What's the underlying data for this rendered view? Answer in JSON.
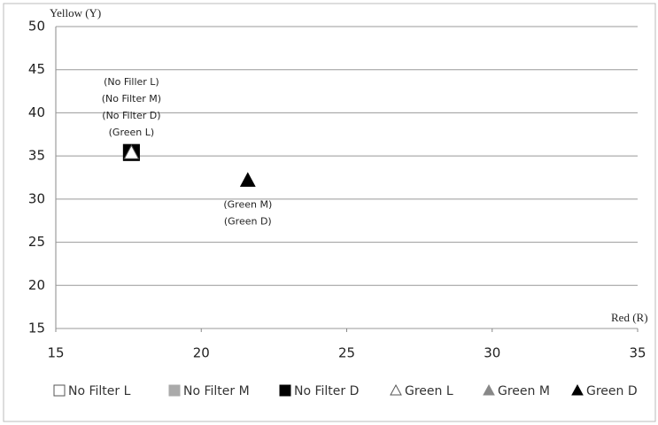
{
  "chart_data": {
    "type": "scatter",
    "y_label": "Yellow (Y)",
    "x_label": "Red (R)",
    "xlim": [
      15,
      35
    ],
    "xticks": [
      15,
      20,
      25,
      30,
      35
    ],
    "ylim": [
      15,
      50
    ],
    "yticks": [
      15,
      20,
      25,
      30,
      35,
      40,
      45,
      50
    ],
    "grid": true,
    "legend": "bottom",
    "series": [
      {
        "name": "No Filter L",
        "color": "#ffffff",
        "marker": "square",
        "x": [
          17.6
        ],
        "values": [
          35.4
        ]
      },
      {
        "name": "No Filter M",
        "color": "#aaaaaa",
        "marker": "square",
        "x": [
          17.6
        ],
        "values": [
          35.4
        ]
      },
      {
        "name": "No Filter D",
        "color": "#000000",
        "marker": "square",
        "x": [
          17.6
        ],
        "values": [
          35.4
        ]
      },
      {
        "name": "Green L",
        "color": "#ffffff",
        "marker": "triangle",
        "x": [
          17.6
        ],
        "values": [
          35.4
        ]
      },
      {
        "name": "Green M",
        "color": "#888888",
        "marker": "triangle",
        "x": [
          21.6
        ],
        "values": [
          32.2
        ]
      },
      {
        "name": "Green D",
        "color": "#000000",
        "marker": "triangle",
        "x": [
          21.6
        ],
        "values": [
          32.2
        ]
      }
    ],
    "annotations": [
      [
        "(No Filler L)",
        "(No Filter M)",
        "(No Filter D)",
        "(Green L)"
      ],
      [
        "(Green M)",
        "(Green D)"
      ]
    ]
  }
}
